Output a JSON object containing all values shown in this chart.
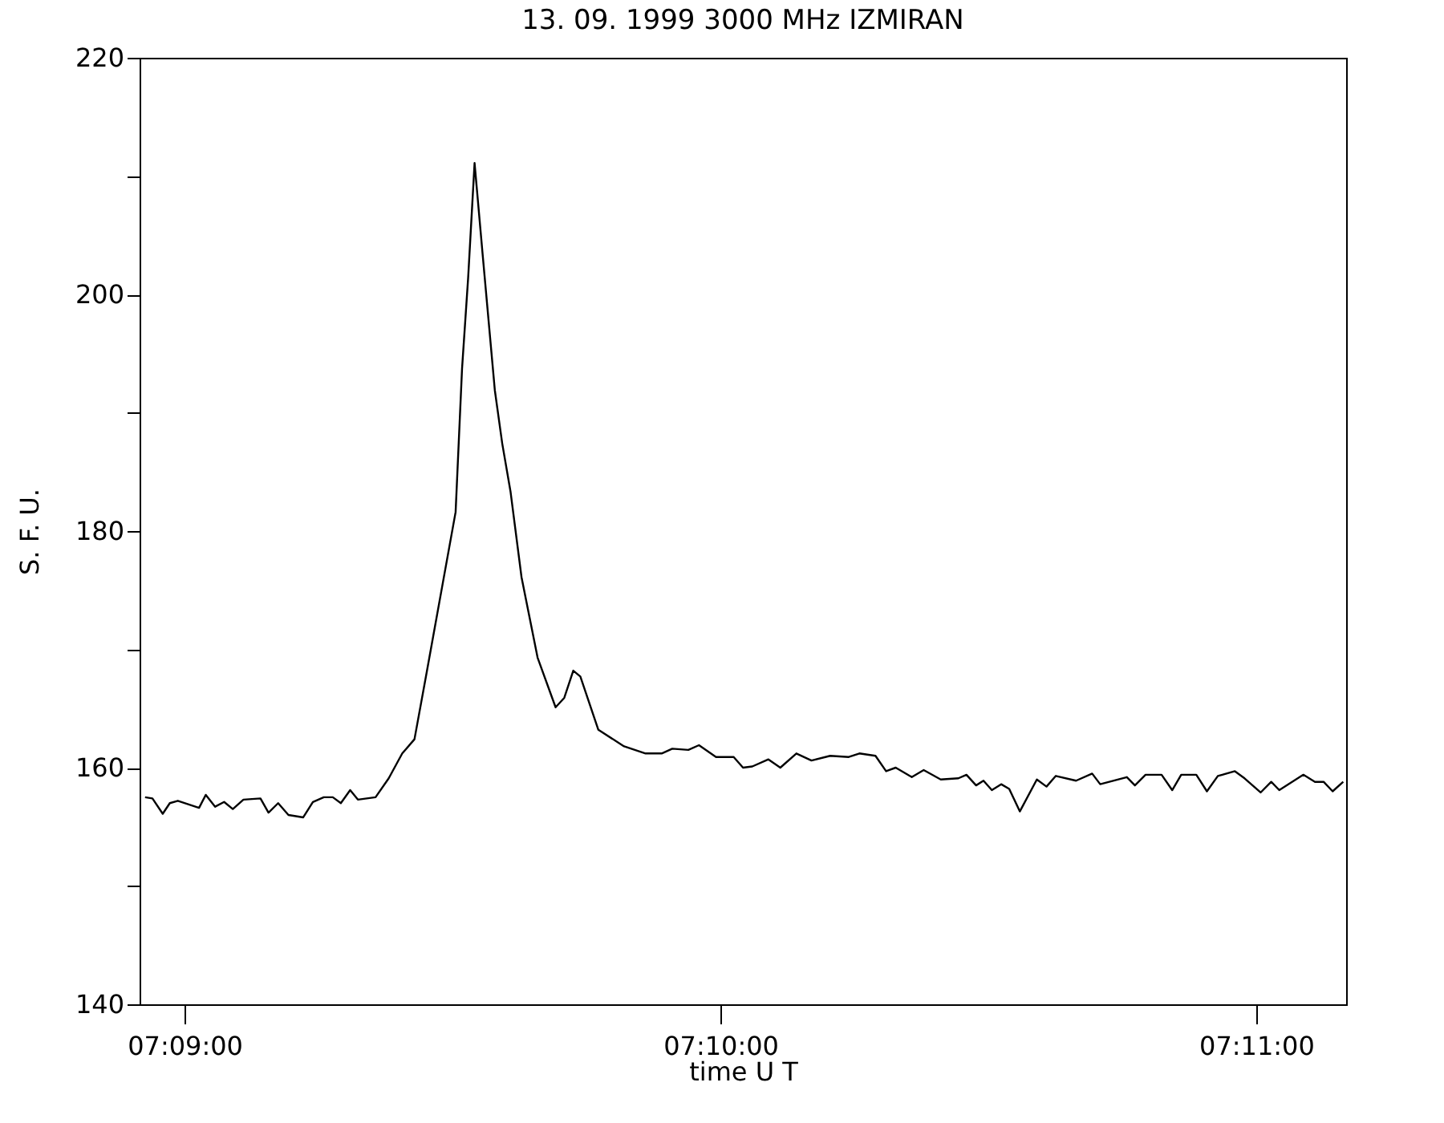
{
  "chart_data": {
    "type": "line",
    "title": "13.  09.  1999    3000 MHz    IZMIRAN",
    "xlabel": "time  U T",
    "ylabel": "S. F. U.",
    "x": [
      7.14877,
      7.149,
      7.14932,
      7.14954,
      7.14979,
      7.15045,
      7.15066,
      7.15095,
      7.15123,
      7.1515,
      7.15183,
      7.15236,
      7.15261,
      7.15291,
      7.15323,
      7.15369,
      7.15399,
      7.15433,
      7.15461,
      7.15486,
      7.15515,
      7.15539,
      7.15594,
      7.15635,
      7.15677,
      7.15715,
      7.15752,
      7.15843,
      7.15863,
      7.15882,
      7.15902,
      7.15927,
      7.15965,
      7.15988,
      7.16014,
      7.16048,
      7.16098,
      7.16154,
      7.16181,
      7.16209,
      7.16231,
      7.16287,
      7.16367,
      7.16434,
      7.16484,
      7.16517,
      7.16567,
      7.166,
      7.16653,
      7.16708,
      7.16737,
      7.16766,
      7.16816,
      7.16853,
      7.16903,
      7.1695,
      7.17008,
      7.17066,
      7.17099,
      7.17149,
      7.17182,
      7.17212,
      7.17262,
      7.17299,
      7.17352,
      7.17407,
      7.17432,
      7.17462,
      7.17485,
      7.17511,
      7.1754,
      7.17565,
      7.17598,
      7.17651,
      7.17681,
      7.1771,
      7.17773,
      7.17823,
      7.17848,
      7.17931,
      7.17956,
      7.17989,
      7.18039,
      7.18072,
      7.181,
      7.18147,
      7.1818,
      7.18214,
      7.18267,
      7.18297,
      7.18347,
      7.1838,
      7.18405,
      7.1848,
      7.18516,
      7.18543,
      7.18571,
      7.18604
    ],
    "series": [
      {
        "color": "#000000",
        "values": [
          157.5,
          157.4,
          156.1,
          157.0,
          157.2,
          156.6,
          157.7,
          156.7,
          157.1,
          156.5,
          157.3,
          157.4,
          156.2,
          157.0,
          156.0,
          155.8,
          157.1,
          157.5,
          157.5,
          157.0,
          158.1,
          157.3,
          157.5,
          159.1,
          161.2,
          162.4,
          167.9,
          181.6,
          193.7,
          201.4,
          211.1,
          203.4,
          191.9,
          187.4,
          183.3,
          176.1,
          169.3,
          165.1,
          165.9,
          168.2,
          167.7,
          163.2,
          161.8,
          161.2,
          161.2,
          161.6,
          161.5,
          161.9,
          160.9,
          160.9,
          160.0,
          160.1,
          160.7,
          160.0,
          161.2,
          160.6,
          161.0,
          160.9,
          161.2,
          161.0,
          159.7,
          160.0,
          159.2,
          159.8,
          159.0,
          159.1,
          159.4,
          158.5,
          158.9,
          158.1,
          158.6,
          158.2,
          156.3,
          159.0,
          158.4,
          159.3,
          158.9,
          159.5,
          158.6,
          159.2,
          158.5,
          159.4,
          159.4,
          158.1,
          159.4,
          159.4,
          158.0,
          159.3,
          159.7,
          159.1,
          157.9,
          158.8,
          158.1,
          159.4,
          158.8,
          158.8,
          158.0,
          158.8
        ]
      }
    ],
    "xlim": [
      7.1486,
      7.18613
    ],
    "xticks": [
      {
        "value": 7.15,
        "label": "07:09:00"
      },
      {
        "value": 7.166667,
        "label": "07:10:00"
      },
      {
        "value": 7.183333,
        "label": "07:11:00"
      }
    ],
    "ylim": [
      140,
      220
    ],
    "yticks": [
      140,
      {
        "value": 150,
        "label": null
      },
      160,
      {
        "value": 170,
        "label": null
      },
      180,
      {
        "value": 190,
        "label": null
      },
      200,
      {
        "value": 210,
        "label": null
      },
      220
    ],
    "grid": false,
    "marker": "none",
    "line_style": "solid"
  }
}
